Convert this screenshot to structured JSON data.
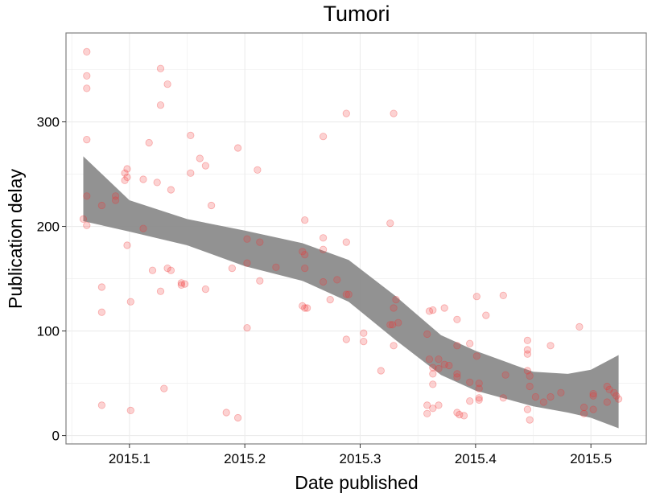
{
  "chart_data": {
    "type": "scatter",
    "title": "Tumori",
    "xlabel": "Date published",
    "ylabel": "Publication delay",
    "xlim": [
      2015.045,
      2015.548
    ],
    "ylim": [
      -8,
      385
    ],
    "x_ticks": [
      2015.1,
      2015.2,
      2015.3,
      2015.4,
      2015.5
    ],
    "x_tick_labels": [
      "2015.1",
      "2015.2",
      "2015.3",
      "2015.4",
      "2015.5"
    ],
    "y_ticks": [
      0,
      100,
      200,
      300
    ],
    "y_tick_labels": [
      "0",
      "100",
      "200",
      "300"
    ],
    "grid": true,
    "legend": "none",
    "colors": {
      "points": "#f03030",
      "smooth_band": "#8c8c8c",
      "panel_border": "#7f7f7f",
      "grid": "#ececec"
    },
    "points": [
      {
        "x": 2015.063,
        "y": 367
      },
      {
        "x": 2015.063,
        "y": 344
      },
      {
        "x": 2015.063,
        "y": 332
      },
      {
        "x": 2015.063,
        "y": 283
      },
      {
        "x": 2015.063,
        "y": 229
      },
      {
        "x": 2015.06,
        "y": 207
      },
      {
        "x": 2015.063,
        "y": 201
      },
      {
        "x": 2015.076,
        "y": 220
      },
      {
        "x": 2015.076,
        "y": 142
      },
      {
        "x": 2015.076,
        "y": 118
      },
      {
        "x": 2015.076,
        "y": 29
      },
      {
        "x": 2015.088,
        "y": 229
      },
      {
        "x": 2015.088,
        "y": 225
      },
      {
        "x": 2015.098,
        "y": 255
      },
      {
        "x": 2015.096,
        "y": 251
      },
      {
        "x": 2015.098,
        "y": 247
      },
      {
        "x": 2015.096,
        "y": 244
      },
      {
        "x": 2015.098,
        "y": 182
      },
      {
        "x": 2015.101,
        "y": 128
      },
      {
        "x": 2015.101,
        "y": 24
      },
      {
        "x": 2015.112,
        "y": 245
      },
      {
        "x": 2015.112,
        "y": 198
      },
      {
        "x": 2015.117,
        "y": 280
      },
      {
        "x": 2015.12,
        "y": 158
      },
      {
        "x": 2015.124,
        "y": 242
      },
      {
        "x": 2015.127,
        "y": 351
      },
      {
        "x": 2015.127,
        "y": 316
      },
      {
        "x": 2015.127,
        "y": 138
      },
      {
        "x": 2015.13,
        "y": 45
      },
      {
        "x": 2015.133,
        "y": 336
      },
      {
        "x": 2015.133,
        "y": 160
      },
      {
        "x": 2015.136,
        "y": 158
      },
      {
        "x": 2015.136,
        "y": 235
      },
      {
        "x": 2015.145,
        "y": 146
      },
      {
        "x": 2015.148,
        "y": 145
      },
      {
        "x": 2015.145,
        "y": 144
      },
      {
        "x": 2015.153,
        "y": 287
      },
      {
        "x": 2015.153,
        "y": 251
      },
      {
        "x": 2015.161,
        "y": 265
      },
      {
        "x": 2015.166,
        "y": 258
      },
      {
        "x": 2015.166,
        "y": 140
      },
      {
        "x": 2015.171,
        "y": 220
      },
      {
        "x": 2015.184,
        "y": 22
      },
      {
        "x": 2015.189,
        "y": 160
      },
      {
        "x": 2015.194,
        "y": 275
      },
      {
        "x": 2015.194,
        "y": 17
      },
      {
        "x": 2015.202,
        "y": 188
      },
      {
        "x": 2015.202,
        "y": 165
      },
      {
        "x": 2015.202,
        "y": 103
      },
      {
        "x": 2015.211,
        "y": 254
      },
      {
        "x": 2015.213,
        "y": 185
      },
      {
        "x": 2015.213,
        "y": 148
      },
      {
        "x": 2015.227,
        "y": 161
      },
      {
        "x": 2015.25,
        "y": 176
      },
      {
        "x": 2015.252,
        "y": 173
      },
      {
        "x": 2015.252,
        "y": 160
      },
      {
        "x": 2015.25,
        "y": 124
      },
      {
        "x": 2015.252,
        "y": 122
      },
      {
        "x": 2015.254,
        "y": 122
      },
      {
        "x": 2015.252,
        "y": 206
      },
      {
        "x": 2015.268,
        "y": 189
      },
      {
        "x": 2015.268,
        "y": 178
      },
      {
        "x": 2015.268,
        "y": 147
      },
      {
        "x": 2015.268,
        "y": 286
      },
      {
        "x": 2015.274,
        "y": 130
      },
      {
        "x": 2015.28,
        "y": 149
      },
      {
        "x": 2015.288,
        "y": 308
      },
      {
        "x": 2015.288,
        "y": 185
      },
      {
        "x": 2015.29,
        "y": 135
      },
      {
        "x": 2015.288,
        "y": 135
      },
      {
        "x": 2015.288,
        "y": 92
      },
      {
        "x": 2015.303,
        "y": 98
      },
      {
        "x": 2015.303,
        "y": 90
      },
      {
        "x": 2015.318,
        "y": 62
      },
      {
        "x": 2015.326,
        "y": 203
      },
      {
        "x": 2015.328,
        "y": 106
      },
      {
        "x": 2015.326,
        "y": 106
      },
      {
        "x": 2015.329,
        "y": 308
      },
      {
        "x": 2015.329,
        "y": 122
      },
      {
        "x": 2015.331,
        "y": 130
      },
      {
        "x": 2015.333,
        "y": 108
      },
      {
        "x": 2015.329,
        "y": 86
      },
      {
        "x": 2015.36,
        "y": 119
      },
      {
        "x": 2015.363,
        "y": 120
      },
      {
        "x": 2015.358,
        "y": 97
      },
      {
        "x": 2015.36,
        "y": 73
      },
      {
        "x": 2015.363,
        "y": 65
      },
      {
        "x": 2015.363,
        "y": 59
      },
      {
        "x": 2015.363,
        "y": 49
      },
      {
        "x": 2015.358,
        "y": 29
      },
      {
        "x": 2015.363,
        "y": 26
      },
      {
        "x": 2015.358,
        "y": 21
      },
      {
        "x": 2015.368,
        "y": 73
      },
      {
        "x": 2015.368,
        "y": 64
      },
      {
        "x": 2015.368,
        "y": 29
      },
      {
        "x": 2015.373,
        "y": 122
      },
      {
        "x": 2015.373,
        "y": 68
      },
      {
        "x": 2015.377,
        "y": 67
      },
      {
        "x": 2015.384,
        "y": 111
      },
      {
        "x": 2015.384,
        "y": 86
      },
      {
        "x": 2015.384,
        "y": 59
      },
      {
        "x": 2015.384,
        "y": 56
      },
      {
        "x": 2015.384,
        "y": 22
      },
      {
        "x": 2015.386,
        "y": 20
      },
      {
        "x": 2015.39,
        "y": 19
      },
      {
        "x": 2015.395,
        "y": 88
      },
      {
        "x": 2015.395,
        "y": 51
      },
      {
        "x": 2015.395,
        "y": 33
      },
      {
        "x": 2015.401,
        "y": 133
      },
      {
        "x": 2015.401,
        "y": 76
      },
      {
        "x": 2015.403,
        "y": 50
      },
      {
        "x": 2015.403,
        "y": 45
      },
      {
        "x": 2015.403,
        "y": 36
      },
      {
        "x": 2015.403,
        "y": 34
      },
      {
        "x": 2015.409,
        "y": 115
      },
      {
        "x": 2015.424,
        "y": 134
      },
      {
        "x": 2015.426,
        "y": 58
      },
      {
        "x": 2015.424,
        "y": 36
      },
      {
        "x": 2015.445,
        "y": 91
      },
      {
        "x": 2015.445,
        "y": 82
      },
      {
        "x": 2015.445,
        "y": 78
      },
      {
        "x": 2015.445,
        "y": 62
      },
      {
        "x": 2015.447,
        "y": 57
      },
      {
        "x": 2015.447,
        "y": 47
      },
      {
        "x": 2015.445,
        "y": 25
      },
      {
        "x": 2015.447,
        "y": 15
      },
      {
        "x": 2015.452,
        "y": 37
      },
      {
        "x": 2015.459,
        "y": 32
      },
      {
        "x": 2015.465,
        "y": 86
      },
      {
        "x": 2015.465,
        "y": 37
      },
      {
        "x": 2015.474,
        "y": 41
      },
      {
        "x": 2015.49,
        "y": 104
      },
      {
        "x": 2015.494,
        "y": 27
      },
      {
        "x": 2015.494,
        "y": 21
      },
      {
        "x": 2015.502,
        "y": 40
      },
      {
        "x": 2015.502,
        "y": 38
      },
      {
        "x": 2015.502,
        "y": 25
      },
      {
        "x": 2015.514,
        "y": 47
      },
      {
        "x": 2015.516,
        "y": 44
      },
      {
        "x": 2015.514,
        "y": 32
      },
      {
        "x": 2015.52,
        "y": 41
      },
      {
        "x": 2015.522,
        "y": 38
      },
      {
        "x": 2015.524,
        "y": 35
      }
    ],
    "smooth_band": {
      "x": [
        2015.06,
        2015.1,
        2015.15,
        2015.2,
        2015.25,
        2015.29,
        2015.33,
        2015.37,
        2015.4,
        2015.45,
        2015.48,
        2015.5,
        2015.524
      ],
      "upper": [
        267,
        225,
        207,
        196,
        184,
        168,
        134,
        96,
        81,
        61,
        59,
        63,
        77
      ],
      "lower": [
        205,
        195,
        182,
        162,
        148,
        128,
        92,
        58,
        43,
        28,
        22,
        17,
        7
      ]
    }
  }
}
